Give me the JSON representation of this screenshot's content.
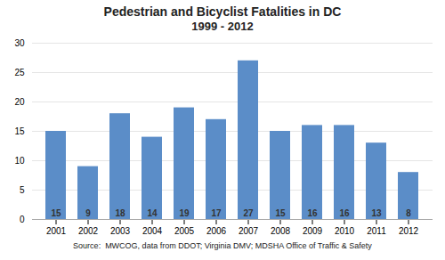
{
  "chart_data": {
    "type": "bar",
    "title": "Pedestrian and Bicyclist Fatalities in DC",
    "subtitle": "1999 - 2012",
    "caption": "Source:  MWCOG, data from DDOT; Virginia DMV; MDSHA Office of Traffic & Safety",
    "categories": [
      "2001",
      "2002",
      "2003",
      "2004",
      "2005",
      "2006",
      "2007",
      "2008",
      "2009",
      "2010",
      "2011",
      "2012"
    ],
    "values": [
      15,
      9,
      18,
      14,
      19,
      17,
      27,
      15,
      16,
      16,
      13,
      8
    ],
    "color": "#5B8DC8",
    "ylim": [
      0,
      30
    ],
    "yticks": [
      0,
      5,
      10,
      15,
      20,
      25,
      30
    ],
    "grid": true,
    "data_labels": true
  }
}
